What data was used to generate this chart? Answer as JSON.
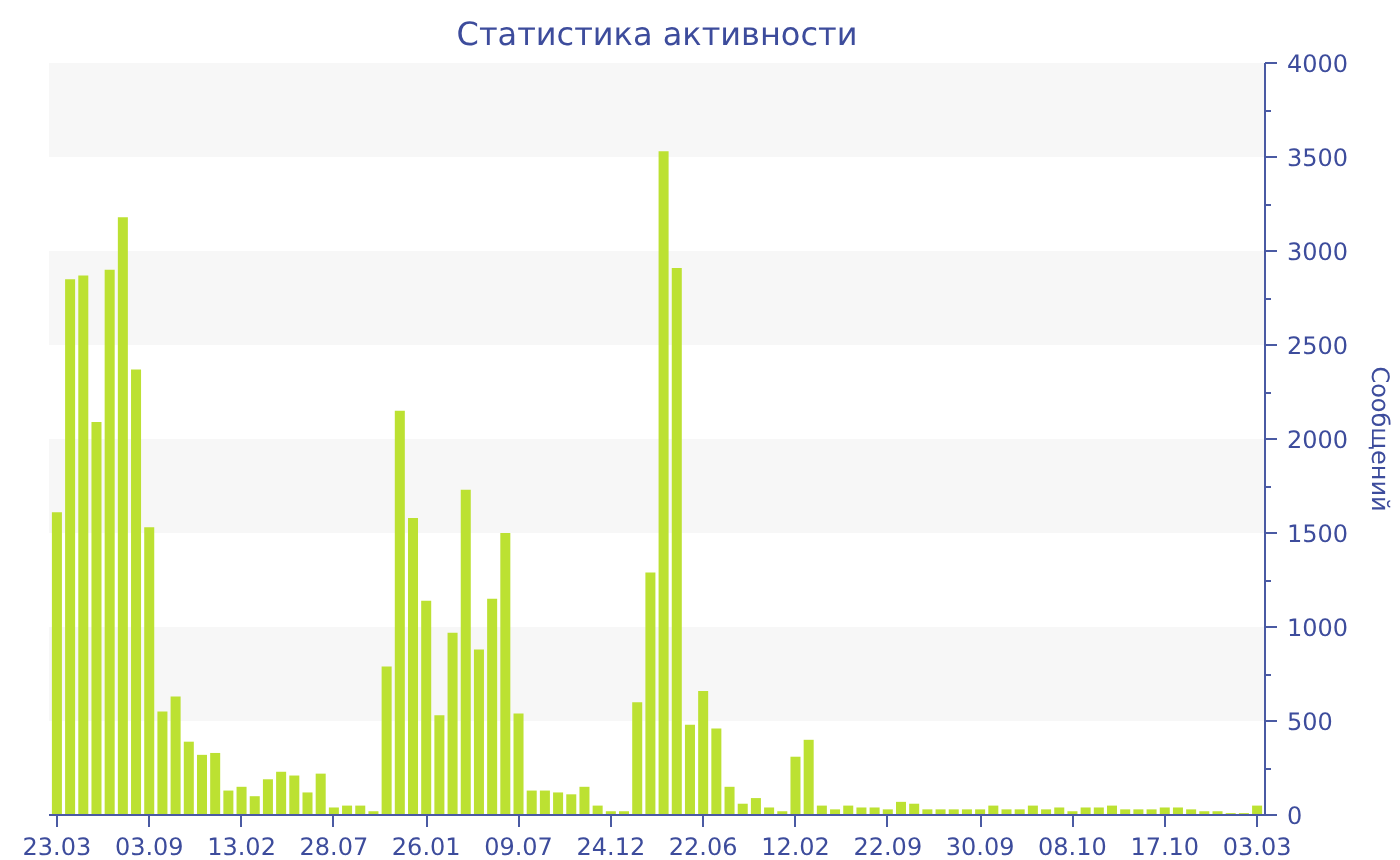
{
  "chart_data": {
    "type": "bar",
    "title": "Статистика активности",
    "ylabel": "Сообщений",
    "categories": [
      "23.03",
      null,
      null,
      null,
      null,
      null,
      null,
      "03.09",
      null,
      null,
      null,
      null,
      null,
      null,
      "13.02",
      null,
      null,
      null,
      null,
      null,
      null,
      "28.07",
      null,
      null,
      null,
      null,
      null,
      null,
      "26.01",
      null,
      null,
      null,
      null,
      null,
      null,
      "09.07",
      null,
      null,
      null,
      null,
      null,
      null,
      "24.12",
      null,
      null,
      null,
      null,
      null,
      null,
      "22.06",
      null,
      null,
      null,
      null,
      null,
      null,
      "12.02",
      null,
      null,
      null,
      null,
      null,
      null,
      "22.09",
      null,
      null,
      null,
      null,
      null,
      null,
      "30.09",
      null,
      null,
      null,
      null,
      null,
      null,
      "08.10",
      null,
      null,
      null,
      null,
      null,
      null,
      "17.10",
      null,
      null,
      null,
      null,
      null,
      null,
      "03.03"
    ],
    "values": [
      1610,
      2850,
      2870,
      2090,
      2900,
      3180,
      2370,
      1530,
      550,
      630,
      390,
      320,
      330,
      130,
      150,
      100,
      190,
      230,
      210,
      120,
      220,
      40,
      50,
      50,
      20,
      790,
      2150,
      1580,
      1140,
      530,
      970,
      1730,
      880,
      1150,
      1500,
      540,
      130,
      130,
      120,
      110,
      150,
      50,
      20,
      20,
      600,
      1290,
      3530,
      2910,
      480,
      660,
      460,
      150,
      60,
      90,
      40,
      20,
      310,
      400,
      50,
      30,
      50,
      40,
      40,
      30,
      70,
      60,
      30,
      30,
      30,
      30,
      30,
      50,
      30,
      30,
      50,
      30,
      40,
      20,
      40,
      40,
      50,
      30,
      30,
      30,
      40,
      40,
      30,
      20,
      20,
      10,
      10,
      50
    ],
    "color": "#bce132",
    "ylim": [
      0,
      4000
    ],
    "yticks": [
      0,
      {
        "value": 250,
        "label": null
      },
      500,
      {
        "value": 750,
        "label": null
      },
      1000,
      {
        "value": 1250,
        "label": null
      },
      1500,
      {
        "value": 1750,
        "label": null
      },
      2000,
      {
        "value": 2250,
        "label": null
      },
      2500,
      {
        "value": 2750,
        "label": null
      },
      3000,
      {
        "value": 3250,
        "label": null
      },
      3500,
      {
        "value": 3750,
        "label": null
      },
      4000
    ],
    "bands": [
      {
        "axis": "y",
        "from": 500,
        "to": 1000,
        "color": "#f7f7f7"
      },
      {
        "axis": "y",
        "from": 1500,
        "to": 2000,
        "color": "#f7f7f7"
      },
      {
        "axis": "y",
        "from": 2500,
        "to": 3000,
        "color": "#f7f7f7"
      },
      {
        "axis": "y",
        "from": 3500,
        "to": 4000,
        "color": "#f7f7f7"
      }
    ]
  }
}
